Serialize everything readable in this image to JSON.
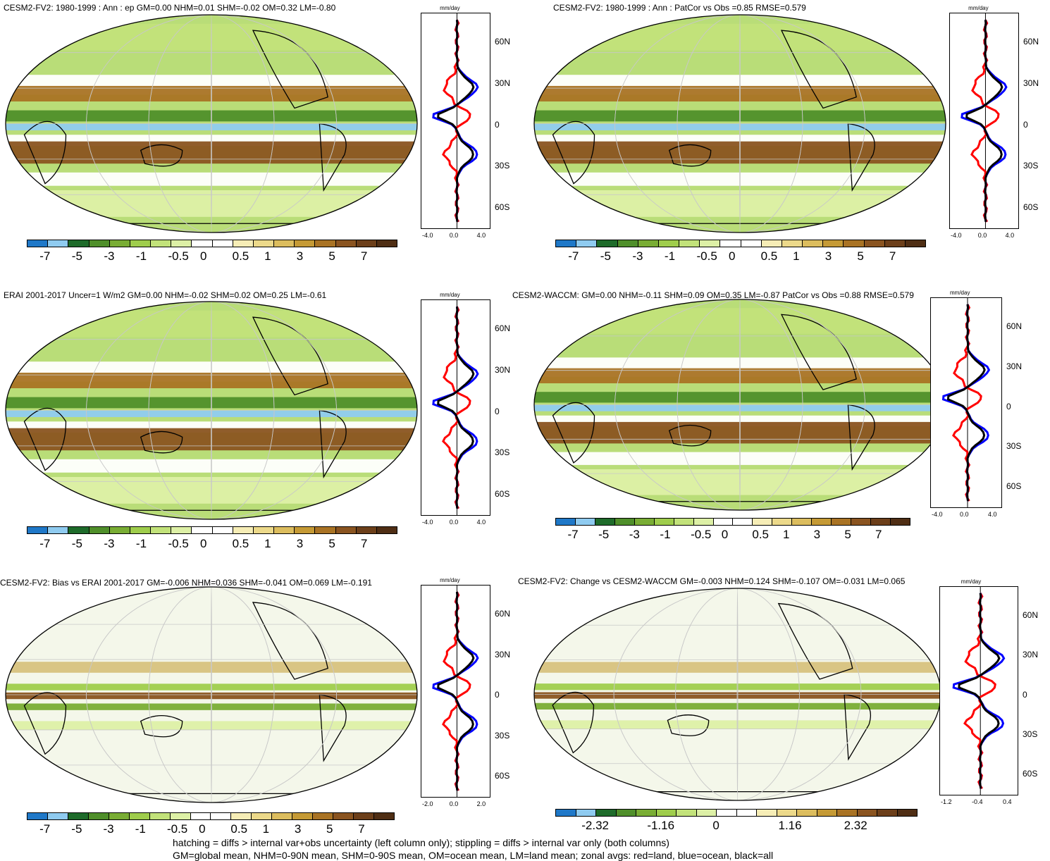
{
  "panels": [
    {
      "title": "CESM2-FV2: 1980-1999 : Ann : ep GM=0.00 NHM=0.01 SHM=-0.02 OM=0.32 LM=-0.80",
      "unit": "mm/day",
      "lat_ticks": [
        "60N",
        "30N",
        "0",
        "30S",
        "60S"
      ],
      "x_ticks": [
        "-4.0",
        "0.0",
        "4.0"
      ],
      "cbar_labels": [
        "-7",
        "-5",
        "-3",
        "-1",
        "-0.5",
        "0",
        "0.5",
        "1",
        "3",
        "5",
        "7"
      ]
    },
    {
      "title": "CESM2-FV2: 1980-1999 : Ann : PatCor vs Obs =0.85 RMSE=0.579",
      "unit": "mm/day",
      "lat_ticks": [
        "60N",
        "30N",
        "0",
        "30S",
        "60S"
      ],
      "x_ticks": [
        "-4.0",
        "0.0",
        "4.0"
      ],
      "cbar_labels": [
        "-7",
        "-5",
        "-3",
        "-1",
        "-0.5",
        "0",
        "0.5",
        "1",
        "3",
        "5",
        "7"
      ]
    },
    {
      "title": "ERAI 2001-2017 Uncer=1 W/m2 GM=0.00 NHM=-0.02 SHM=0.02 OM=0.25 LM=-0.61",
      "unit": "mm/day",
      "lat_ticks": [
        "60N",
        "30N",
        "0",
        "30S",
        "60S"
      ],
      "x_ticks": [
        "-4.0",
        "0.0",
        "4.0"
      ],
      "cbar_labels": [
        "-7",
        "-5",
        "-3",
        "-1",
        "-0.5",
        "0",
        "0.5",
        "1",
        "3",
        "5",
        "7"
      ]
    },
    {
      "title": "CESM2-WACCM: GM=0.00 NHM=-0.11 SHM=0.09 OM=0.35 LM=-0.87 PatCor vs Obs =0.88 RMSE=0.579",
      "unit": "mm/day",
      "lat_ticks": [
        "60N",
        "30N",
        "0",
        "30S",
        "60S"
      ],
      "x_ticks": [
        "-4.0",
        "0.0",
        "4.0"
      ],
      "cbar_labels": [
        "-7",
        "-5",
        "-3",
        "-1",
        "-0.5",
        "0",
        "0.5",
        "1",
        "3",
        "5",
        "7"
      ]
    },
    {
      "title": "CESM2-FV2: Bias vs ERAI 2001-2017 GM=-0.006 NHM=0.036 SHM=-0.041 OM=0.069 LM=-0.191",
      "unit": "mm/day",
      "lat_ticks": [
        "60N",
        "30N",
        "0",
        "30S",
        "60S"
      ],
      "x_ticks": [
        "-2.0",
        "0.0",
        "2.0"
      ],
      "cbar_labels": [
        "-7",
        "-5",
        "-3",
        "-1",
        "-0.5",
        "0",
        "0.5",
        "1",
        "3",
        "5",
        "7"
      ]
    },
    {
      "title": "CESM2-FV2: Change vs CESM2-WACCM GM=-0.003 NHM=0.124 SHM=-0.107 OM=-0.031 LM=0.065",
      "unit": "mm/day",
      "lat_ticks": [
        "60N",
        "30N",
        "0",
        "30S",
        "60S"
      ],
      "x_ticks": [
        "-1.2",
        "-0.4",
        "0.4"
      ],
      "cbar_labels": [
        "-2.32",
        "-1.16",
        "0",
        "1.16",
        "2.32"
      ]
    }
  ],
  "palette": [
    "#1f78c8",
    "#8fcbf0",
    "#1e6b2a",
    "#4f8f2a",
    "#79ad34",
    "#9fcd4c",
    "#c2e27a",
    "#ddf0a6",
    "#ffffff",
    "#ffffff",
    "#f6edb6",
    "#ecd98a",
    "#dcbd5e",
    "#c59a35",
    "#a97324",
    "#8a5420",
    "#6c3f1a",
    "#4f2e14"
  ],
  "colors": {
    "land": "#ff0000",
    "ocean": "#0000ff",
    "all": "#000000"
  },
  "footer": {
    "line1": "hatching = diffs > internal var+obs uncertainty (left column only); stippling = diffs > internal var only (both columns)",
    "line2": "GM=global mean, NHM=0-90N mean, SHM=0-90S mean, OM=ocean mean, LM=land mean; zonal avgs: red=land, blue=ocean, black=all"
  }
}
